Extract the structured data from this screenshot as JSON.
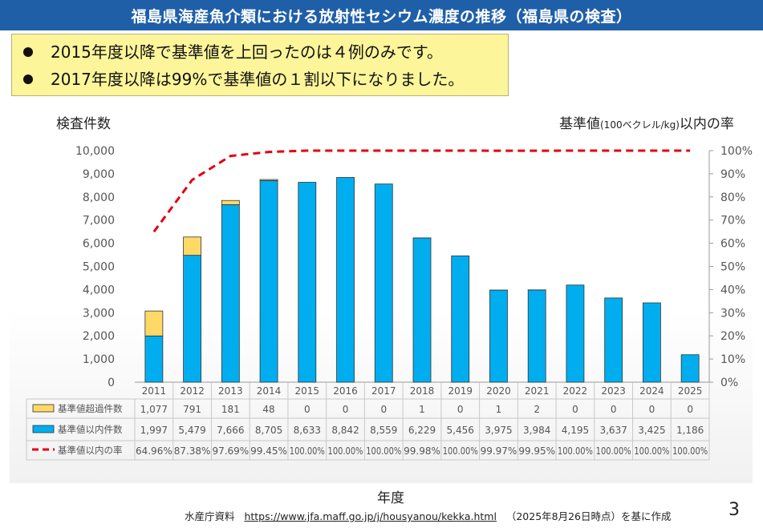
{
  "header": {
    "title": "福島県海産魚介類における放射性セシウム濃度の推移（福島県の検査）"
  },
  "notes": [
    "2015年度以降で基準値を上回ったのは４例のみです。",
    "2017年度以降は99%で基準値の１割以下になりました。"
  ],
  "axis_titles": {
    "left": "検査件数",
    "right_main": "基準値",
    "right_sub": "(100ベクレル/kg)",
    "right_tail": "以内の率",
    "x": "年度"
  },
  "source": {
    "prefix": "水産庁資料",
    "url": "https://www.jfa.maff.go.jp/j/housyanou/kekka.html",
    "suffix": "（2025年8月26日時点）を基に作成"
  },
  "page_number": "3",
  "colors": {
    "title_bg": "#1f5fa8",
    "note_bg": "#fcf59a",
    "below_bar": "#00aeef",
    "over_bar": "#ffd966",
    "line": "#e3000f"
  },
  "chart_data": {
    "type": "bar",
    "stacked": true,
    "categories": [
      "2011",
      "2012",
      "2013",
      "2014",
      "2015",
      "2016",
      "2017",
      "2018",
      "2019",
      "2020",
      "2021",
      "2022",
      "2023",
      "2024",
      "2025"
    ],
    "series": [
      {
        "name": "基準値超過件数",
        "axis": "left",
        "values": [
          1077,
          791,
          181,
          48,
          0,
          0,
          0,
          1,
          0,
          1,
          2,
          0,
          0,
          0,
          0
        ],
        "labels": [
          "1,077",
          "791",
          "181",
          "48",
          "0",
          "0",
          "0",
          "1",
          "0",
          "1",
          "2",
          "0",
          "0",
          "0",
          "0"
        ]
      },
      {
        "name": "基準値以内件数",
        "axis": "left",
        "values": [
          1997,
          5479,
          7666,
          8705,
          8633,
          8842,
          8559,
          6229,
          5456,
          3975,
          3984,
          4195,
          3637,
          3425,
          1186
        ],
        "labels": [
          "1,997",
          "5,479",
          "7,666",
          "8,705",
          "8,633",
          "8,842",
          "8,559",
          "6,229",
          "5,456",
          "3,975",
          "3,984",
          "4,195",
          "3,637",
          "3,425",
          "1,186"
        ]
      },
      {
        "name": "基準値以内の率",
        "axis": "right",
        "type": "line",
        "values": [
          64.96,
          87.38,
          97.69,
          99.45,
          100.0,
          100.0,
          100.0,
          99.98,
          100.0,
          99.97,
          99.95,
          100.0,
          100.0,
          100.0,
          100.0
        ],
        "labels": [
          "64.96%",
          "87.38%",
          "97.69%",
          "99.45%",
          "100.00%",
          "100.00%",
          "100.00%",
          "99.98%",
          "100.00%",
          "99.97%",
          "99.95%",
          "100.00%",
          "100.00%",
          "100.00%",
          "100.00%"
        ]
      }
    ],
    "ylim": [
      0,
      10000
    ],
    "yticks": [
      "0",
      "1,000",
      "2,000",
      "3,000",
      "4,000",
      "5,000",
      "6,000",
      "7,000",
      "8,000",
      "9,000",
      "10,000"
    ],
    "y2lim": [
      0,
      100
    ],
    "y2ticks": [
      "0%",
      "10%",
      "20%",
      "30%",
      "40%",
      "50%",
      "60%",
      "70%",
      "80%",
      "90%",
      "100%"
    ],
    "ylabel": "検査件数",
    "y2label": "基準値(100ベクレル/kg)以内の率",
    "xlabel": "年度",
    "grid": false,
    "legend": "data-table"
  }
}
